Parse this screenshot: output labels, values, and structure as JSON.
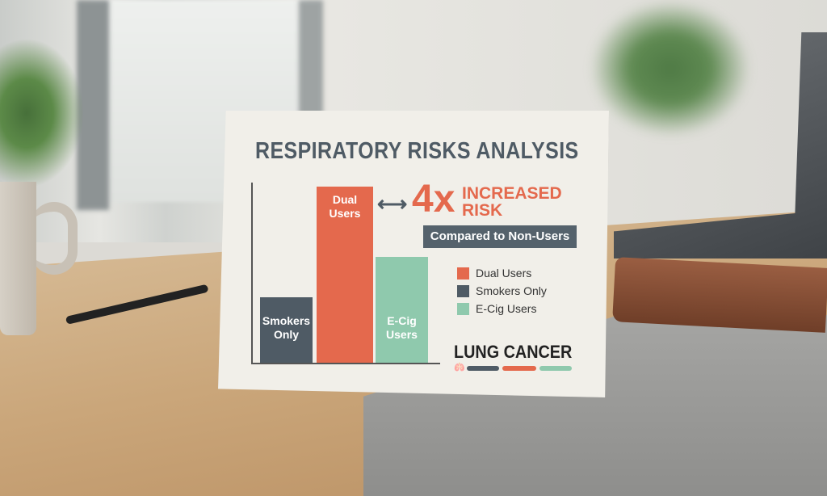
{
  "card": {
    "title": "RESPIRATORY RISKS ANALYSIS",
    "multiplier": "4x",
    "increased": "INCREASED",
    "risk": "RISK",
    "comparison": "Compared to Non-Users",
    "footer": "LUNG CANCER",
    "bars": [
      {
        "label_1": "Smokers",
        "label_2": "Only",
        "relative_height": 0.37,
        "color": "#4f5b65"
      },
      {
        "label_1": "Dual",
        "label_2": "Users",
        "relative_height": 1.0,
        "color": "#e4694d"
      },
      {
        "label_1": "E-Cig",
        "label_2": "Users",
        "relative_height": 0.6,
        "color": "#8fc9ad"
      }
    ],
    "legend": [
      {
        "label": "Dual Users",
        "color": "#e4694d"
      },
      {
        "label": "Smokers Only",
        "color": "#4f5b65"
      },
      {
        "label": "E-Cig Users",
        "color": "#8fc9ad"
      }
    ]
  }
}
